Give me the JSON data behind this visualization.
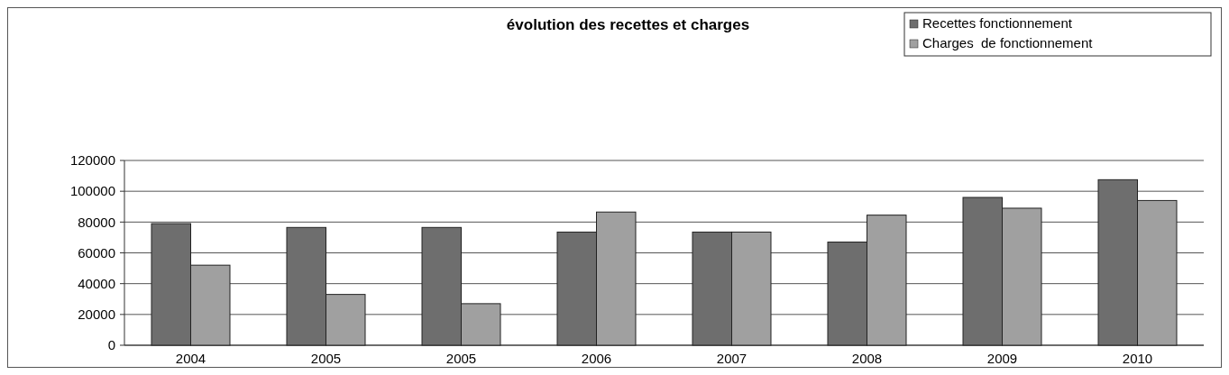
{
  "chart_data": {
    "type": "bar",
    "title": "évolution des recettes et charges",
    "categories": [
      "2004",
      "2005",
      "2005",
      "2006",
      "2007",
      "2008",
      "2009",
      "2010"
    ],
    "series": [
      {
        "name": "Recettes fonctionnement",
        "color": "#6e6e6e",
        "values": [
          79000,
          76500,
          76500,
          73500,
          73500,
          67000,
          96000,
          107500
        ]
      },
      {
        "name": "Charges  de fonctionnement",
        "color": "#a0a0a0",
        "values": [
          52000,
          33000,
          27000,
          86500,
          73500,
          84500,
          89000,
          94000
        ]
      }
    ],
    "ylim": [
      0,
      120000
    ],
    "yticks": [
      0,
      20000,
      40000,
      60000,
      80000,
      100000,
      120000
    ],
    "grid": "y",
    "legend": "top right"
  }
}
